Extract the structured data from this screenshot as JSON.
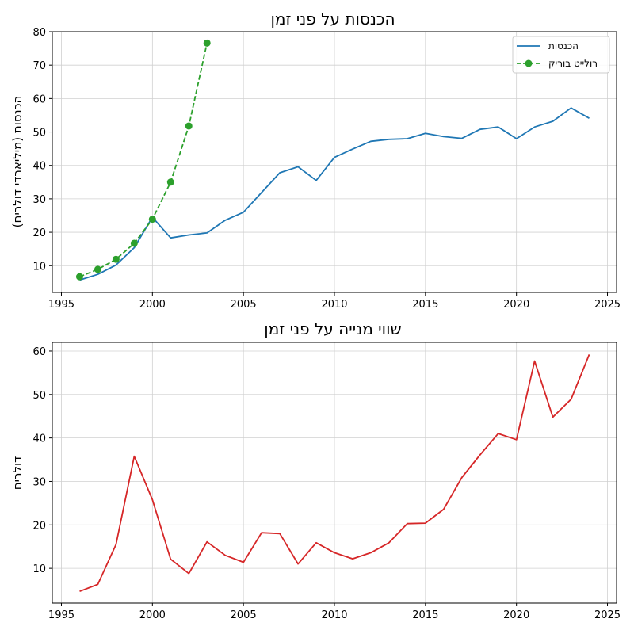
{
  "chart_data": [
    {
      "type": "line",
      "title": "הכנסות על פני זמן",
      "xlabel": "",
      "ylabel": "הכנסות (מיליארדי דולרים)",
      "xlim": [
        1994.5,
        2025.5
      ],
      "ylim": [
        2,
        80
      ],
      "xticks": [
        1995,
        2000,
        2005,
        2010,
        2015,
        2020,
        2025
      ],
      "yticks": [
        10,
        20,
        30,
        40,
        50,
        60,
        70,
        80
      ],
      "grid": true,
      "legend_position": "top-right",
      "series": [
        {
          "name": "הכנסות",
          "color": "#1f77b4",
          "style": "solid",
          "x": [
            1996,
            1997,
            1998,
            1999,
            2000,
            2001,
            2002,
            2003,
            2004,
            2005,
            2006,
            2007,
            2008,
            2009,
            2010,
            2011,
            2012,
            2013,
            2014,
            2015,
            2016,
            2017,
            2018,
            2019,
            2020,
            2021,
            2022,
            2023,
            2024
          ],
          "y": [
            5.7,
            7.4,
            10.2,
            15.4,
            24.5,
            18.3,
            19.2,
            19.8,
            23.6,
            26.0,
            31.9,
            37.8,
            39.6,
            35.5,
            42.4,
            44.9,
            47.2,
            47.8,
            48.0,
            49.6,
            48.6,
            48.1,
            50.8,
            51.5,
            48.0,
            51.5,
            53.2,
            57.2,
            54.1
          ]
        },
        {
          "name": "רולייט בוריק",
          "color": "#2ca02c",
          "style": "dashed",
          "marker": "circle",
          "x": [
            1996,
            1997,
            1998,
            1999,
            2000,
            2001,
            2002,
            2003
          ],
          "y": [
            6.7,
            8.9,
            11.9,
            16.7,
            23.9,
            35.0,
            51.8,
            76.6
          ]
        }
      ]
    },
    {
      "type": "line",
      "title": "שווי מנייה על פני זמן",
      "xlabel": "",
      "ylabel": "דולרים",
      "xlim": [
        1994.5,
        2025.5
      ],
      "ylim": [
        2,
        62
      ],
      "xticks": [
        1995,
        2000,
        2005,
        2010,
        2015,
        2020,
        2025
      ],
      "yticks": [
        10,
        20,
        30,
        40,
        50,
        60
      ],
      "grid": true,
      "series": [
        {
          "color": "#d62728",
          "style": "solid",
          "x": [
            1996,
            1997,
            1998,
            1999,
            2000,
            2001,
            2002,
            2003,
            2004,
            2005,
            2006,
            2007,
            2008,
            2009,
            2010,
            2011,
            2012,
            2013,
            2014,
            2015,
            2016,
            2017,
            2018,
            2019,
            2020,
            2021,
            2022,
            2023,
            2024
          ],
          "y": [
            4.7,
            6.3,
            15.5,
            35.8,
            25.8,
            12.1,
            8.8,
            16.1,
            13.0,
            11.4,
            18.2,
            18.0,
            11.0,
            15.9,
            13.6,
            12.2,
            13.6,
            15.9,
            20.3,
            20.4,
            23.6,
            30.9,
            36.1,
            41.0,
            39.6,
            57.7,
            44.8,
            48.9,
            59.2
          ]
        }
      ]
    }
  ]
}
